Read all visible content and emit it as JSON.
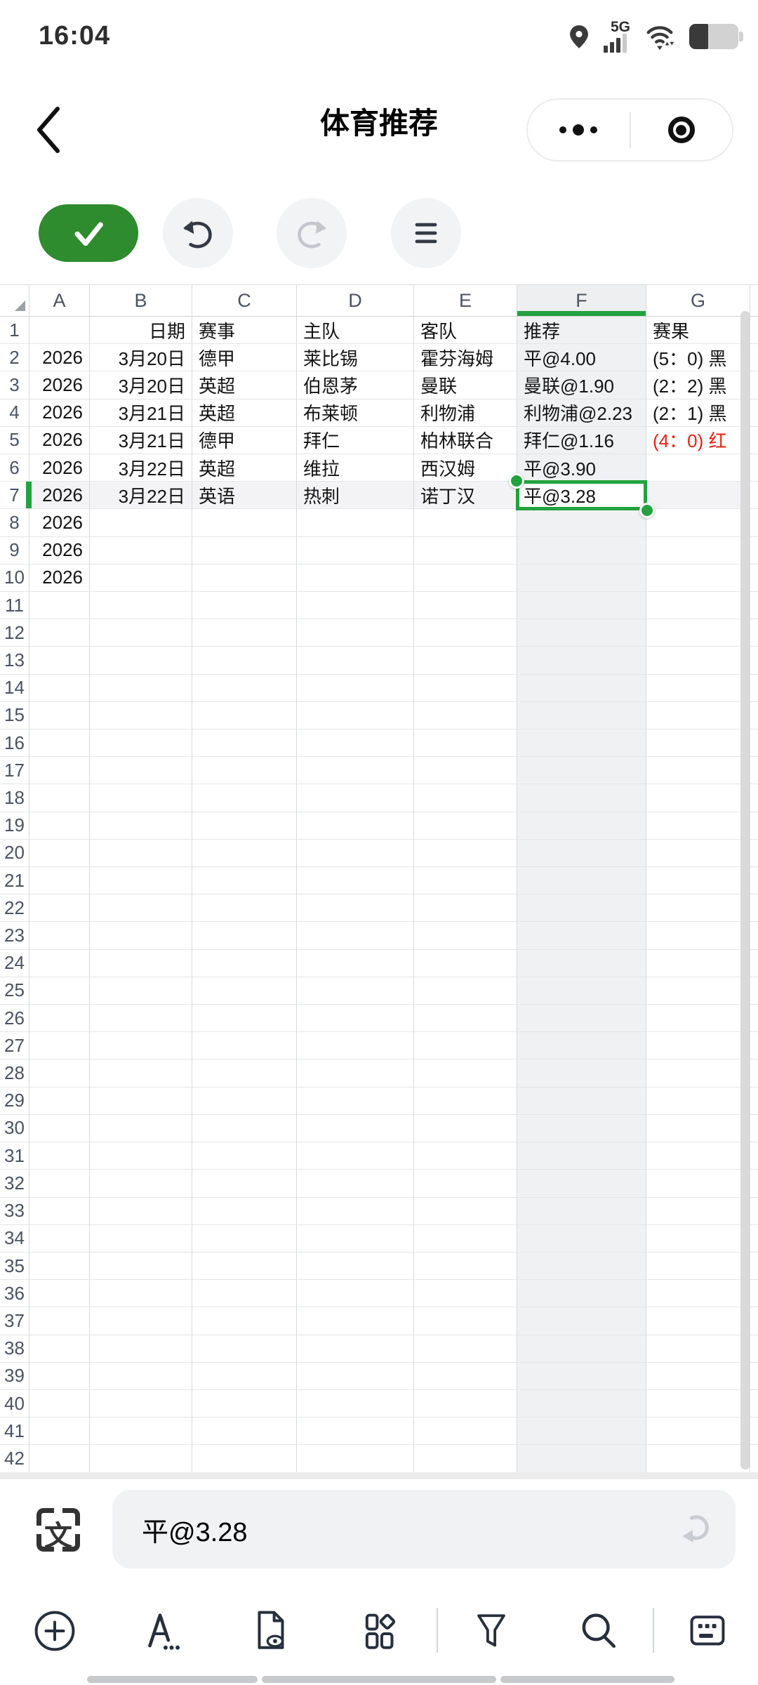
{
  "status_bar": {
    "time": "16:04",
    "network_label": "5G"
  },
  "nav": {
    "title": "体育推荐"
  },
  "colors": {
    "accent_green": "#2E8B2E",
    "selection_green": "#23A23E",
    "result_red": "#EC1D14"
  },
  "icons": {
    "status": [
      "location-icon",
      "signal-icon",
      "wifi-icon",
      "battery-icon"
    ],
    "nav": [
      "back-icon",
      "more-icon",
      "record-icon"
    ],
    "toolbar": [
      "check-icon",
      "undo-icon",
      "redo-icon",
      "menu-icon"
    ],
    "formula": [
      "scan-text-icon",
      "return-icon"
    ],
    "bottom": [
      "add-icon",
      "font-icon",
      "doc-view-icon",
      "widgets-icon",
      "filter-icon",
      "search-icon",
      "keyboard-icon"
    ]
  },
  "scan_glyph": "文",
  "sheet": {
    "col_letters": [
      "A",
      "B",
      "C",
      "D",
      "E",
      "F",
      "G"
    ],
    "row_count": 42,
    "selected_col": "F",
    "selected_row": 7,
    "selected_cell": "F7",
    "rows": [
      {
        "n": 1,
        "B": "日期",
        "C": "赛事",
        "D": "主队",
        "E": "客队",
        "F": "推荐",
        "G": "赛果"
      },
      {
        "n": 2,
        "A": "2026",
        "B": "3月20日",
        "C": "德甲",
        "D": "莱比锡",
        "E": "霍芬海姆",
        "F": "平@4.00",
        "G": "(5：0) 黑"
      },
      {
        "n": 3,
        "A": "2026",
        "B": "3月20日",
        "C": "英超",
        "D": "伯恩茅",
        "E": "曼联",
        "F": "曼联@1.90",
        "G": "(2：2) 黑"
      },
      {
        "n": 4,
        "A": "2026",
        "B": "3月21日",
        "C": "英超",
        "D": "布莱顿",
        "E": "利物浦",
        "F": "利物浦@2.23",
        "G": "(2：1) 黑"
      },
      {
        "n": 5,
        "A": "2026",
        "B": "3月21日",
        "C": "德甲",
        "D": "拜仁",
        "E": "柏林联合",
        "F": "拜仁@1.16",
        "G": "(4：0) 红",
        "g_red": true
      },
      {
        "n": 6,
        "A": "2026",
        "B": "3月22日",
        "C": "英超",
        "D": "维拉",
        "E": "西汉姆",
        "F": "平@3.90"
      },
      {
        "n": 7,
        "A": "2026",
        "B": "3月22日",
        "C": "英语",
        "D": "热刺",
        "E": "诺丁汉",
        "F": "平@3.28"
      },
      {
        "n": 8,
        "A": "2026"
      },
      {
        "n": 9,
        "A": "2026"
      },
      {
        "n": 10,
        "A": "2026"
      }
    ]
  },
  "formula_bar": {
    "value": "平@3.28"
  }
}
